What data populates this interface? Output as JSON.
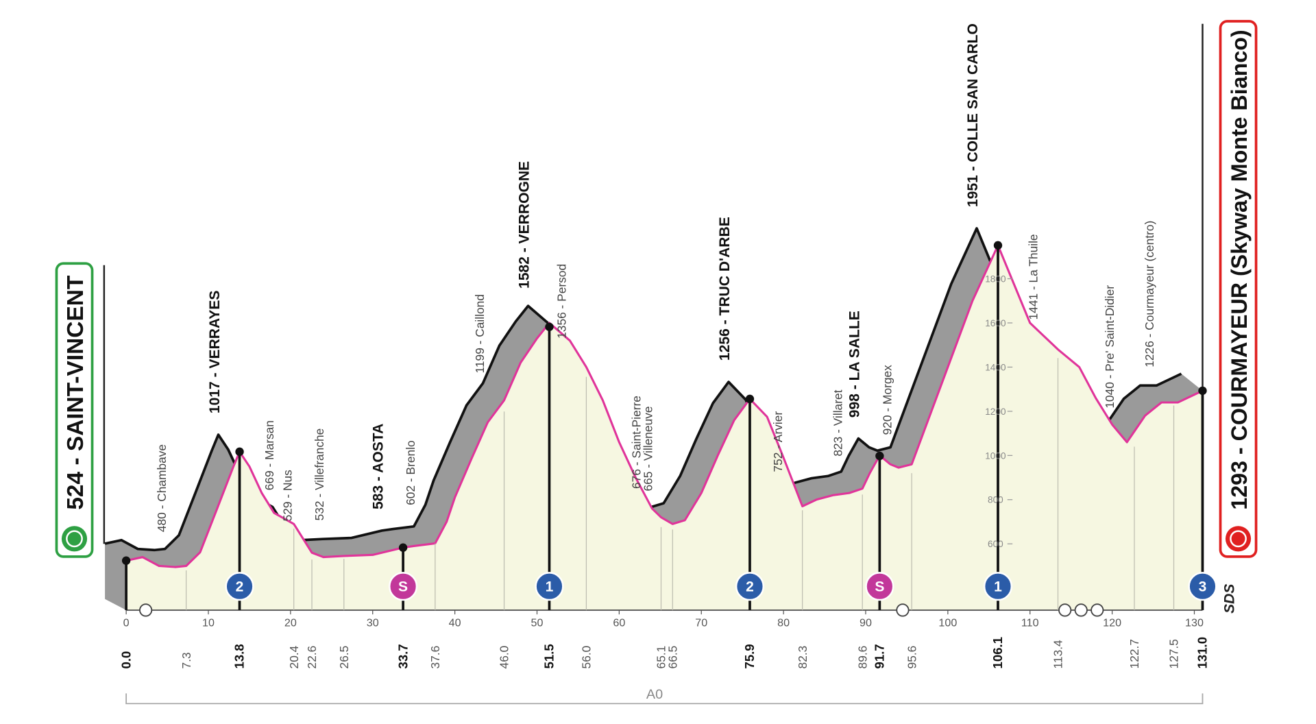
{
  "chart_data": {
    "type": "profile",
    "start_label": "524 - SAINT-VINCENT",
    "finish_label": "1293 - COURMAYEUR (Skyway Monte Bianco)",
    "color": "#e0349a",
    "xlim": [
      0,
      131
    ],
    "ylim": [
      300,
      2000
    ],
    "xticks": [
      0,
      10,
      20,
      30,
      40,
      50,
      60,
      70,
      80,
      90,
      100,
      110,
      120,
      130
    ],
    "yticks": [
      600,
      800,
      1000,
      1200,
      1400,
      1600,
      1800
    ],
    "x": [
      0,
      2,
      4,
      6,
      7.3,
      9,
      11,
      13,
      13.8,
      15,
      16.5,
      18,
      20.4,
      22.6,
      24,
      26.5,
      30,
      33.7,
      35,
      37.6,
      39,
      40,
      42,
      44,
      46,
      48,
      50,
      51.5,
      54,
      56,
      58,
      60,
      62,
      64,
      65.1,
      66.5,
      68,
      70,
      72,
      74,
      75.9,
      78,
      80,
      82.3,
      84,
      86,
      88,
      89.6,
      90.5,
      91.7,
      93,
      94,
      95.6,
      97,
      100,
      103,
      106.1,
      108,
      110,
      113.4,
      116,
      118,
      120,
      121.8,
      124,
      126,
      128,
      131
    ],
    "values": [
      524,
      540,
      500,
      495,
      500,
      562,
      753,
      945,
      1017,
      950,
      830,
      740,
      690,
      560,
      540,
      545,
      550,
      583,
      590,
      602,
      700,
      810,
      983,
      1150,
      1250,
      1420,
      1530,
      1600,
      1520,
      1400,
      1250,
      1060,
      900,
      760,
      720,
      690,
      707,
      830,
      1000,
      1160,
      1256,
      1175,
      990,
      770,
      800,
      820,
      830,
      850,
      920,
      1000,
      960,
      945,
      960,
      1100,
      1400,
      1700,
      1951,
      1780,
      1600,
      1480,
      1400,
      1260,
      1140,
      1060,
      1180,
      1240,
      1240,
      1293
    ],
    "waypoints": [
      {
        "km": {
          "value": 0,
          "label": "0.0"
        },
        "elevation": 524,
        "bold": true
      },
      {
        "km": 7.3,
        "elevation": 480,
        "label": "480 - Chambave"
      },
      {
        "km": 13.8,
        "elevation": 1017,
        "label": "1017 - VERRAYES",
        "bold": true,
        "badge": "2",
        "badge_color": "#2b5ca8"
      },
      {
        "km": 20.4,
        "elevation": 669,
        "label": "669 - Marsan"
      },
      {
        "km": 22.6,
        "elevation": 529,
        "label": "529 - Nus"
      },
      {
        "km": 26.5,
        "elevation": 532,
        "label": "532 - Villefranche"
      },
      {
        "km": 33.7,
        "elevation": 583,
        "label": "583 - AOSTA",
        "bold": true,
        "badge": "S",
        "badge_color": "#c2389a"
      },
      {
        "km": 37.6,
        "elevation": 602,
        "label": "602 - Brenlo"
      },
      {
        "km": {
          "value": 46,
          "label": "46.0"
        },
        "elevation": 1199,
        "label": "1199 - Caillond"
      },
      {
        "km": 51.5,
        "elevation": 1582,
        "label": "1582 - VERROGNE",
        "bold": true,
        "badge": "1",
        "badge_color": "#2b5ca8"
      },
      {
        "km": {
          "value": 56,
          "label": "56.0"
        },
        "elevation": 1356,
        "label": "1356 - Persod"
      },
      {
        "km": 65.1,
        "elevation": 676,
        "label": "676 - Saint-Pierre"
      },
      {
        "km": 66.5,
        "elevation": 665,
        "label": "665 - Villeneuve"
      },
      {
        "km": 75.9,
        "elevation": 1256,
        "label": "1256 - TRUC D'ARBE",
        "bold": true,
        "badge": "2",
        "badge_color": "#2b5ca8"
      },
      {
        "km": 82.3,
        "elevation": 752,
        "label": "752 - Arvier"
      },
      {
        "km": 89.6,
        "elevation": 823,
        "label": "823 - Villaret"
      },
      {
        "km": 91.7,
        "elevation": 998,
        "label": "998 - LA SALLE",
        "bold": true,
        "badge": "S",
        "badge_color": "#c2389a"
      },
      {
        "km": 95.6,
        "elevation": 920,
        "label": "920 - Morgex"
      },
      {
        "km": 106.1,
        "elevation": 1951,
        "label": "1951 - COLLE SAN CARLO",
        "bold": true,
        "badge": "1",
        "badge_color": "#2b5ca8"
      },
      {
        "km": 113.4,
        "elevation": 1441,
        "label": "1441 - La Thuile"
      },
      {
        "km": 122.7,
        "elevation": 1040,
        "label": "1040 - Pre' Saint-Didier"
      },
      {
        "km": 127.5,
        "elevation": 1226,
        "label": "1226 - Courmayeur (centro)"
      },
      {
        "km": {
          "value": 131,
          "label": "131.0"
        },
        "elevation": 1293,
        "bold": true,
        "badge": "3",
        "badge_color": "#2b5ca8"
      }
    ],
    "motorway": "A0",
    "logo": "SDS"
  }
}
